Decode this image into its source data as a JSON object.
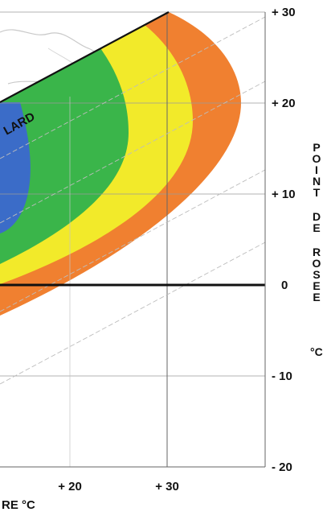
{
  "chart_data": {
    "type": "area",
    "title": "",
    "xlabel": "RE °C",
    "ylabel": "POINT DE ROSEE",
    "ylabel_unit": "°C",
    "y_ticks": [
      "+ 30",
      "+ 20",
      "+ 10",
      "0",
      "- 10",
      "- 20"
    ],
    "y_tick_values": [
      30,
      20,
      10,
      0,
      -10,
      -20
    ],
    "x_ticks": [
      "+ 20",
      "+ 30"
    ],
    "x_tick_values": [
      20,
      30
    ],
    "ylim": [
      -20,
      30
    ],
    "grid": true,
    "curve_label": "LARD",
    "zone_colors": [
      "#f08030",
      "#f2ea2a",
      "#3ab54a",
      "#3b6cc8"
    ]
  }
}
